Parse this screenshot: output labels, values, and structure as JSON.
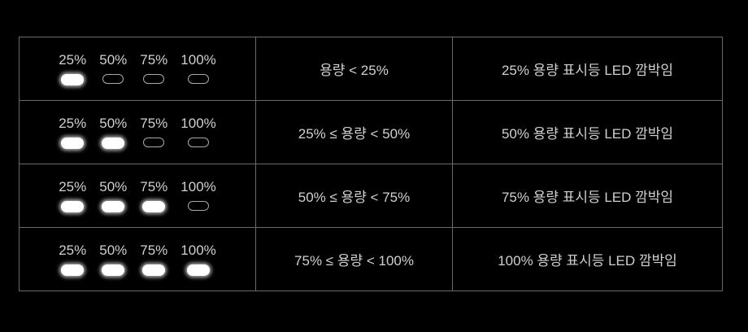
{
  "rows": [
    {
      "leds": [
        {
          "label": "25%",
          "on": true
        },
        {
          "label": "50%",
          "on": false
        },
        {
          "label": "75%",
          "on": false
        },
        {
          "label": "100%",
          "on": false
        }
      ],
      "range": "용량 < 25%",
      "status": "25% 용량 표시등 LED 깜박임"
    },
    {
      "leds": [
        {
          "label": "25%",
          "on": true
        },
        {
          "label": "50%",
          "on": true
        },
        {
          "label": "75%",
          "on": false
        },
        {
          "label": "100%",
          "on": false
        }
      ],
      "range": "25% ≤ 용량 < 50%",
      "status": "50% 용량 표시등 LED 깜박임"
    },
    {
      "leds": [
        {
          "label": "25%",
          "on": true
        },
        {
          "label": "50%",
          "on": true
        },
        {
          "label": "75%",
          "on": true
        },
        {
          "label": "100%",
          "on": false
        }
      ],
      "range": "50% ≤ 용량 < 75%",
      "status": "75% 용량 표시등 LED 깜박임"
    },
    {
      "leds": [
        {
          "label": "25%",
          "on": true
        },
        {
          "label": "50%",
          "on": true
        },
        {
          "label": "75%",
          "on": true
        },
        {
          "label": "100%",
          "on": true
        }
      ],
      "range": "75% ≤ 용량 < 100%",
      "status": "100% 용량 표시등 LED 깜박임"
    }
  ]
}
